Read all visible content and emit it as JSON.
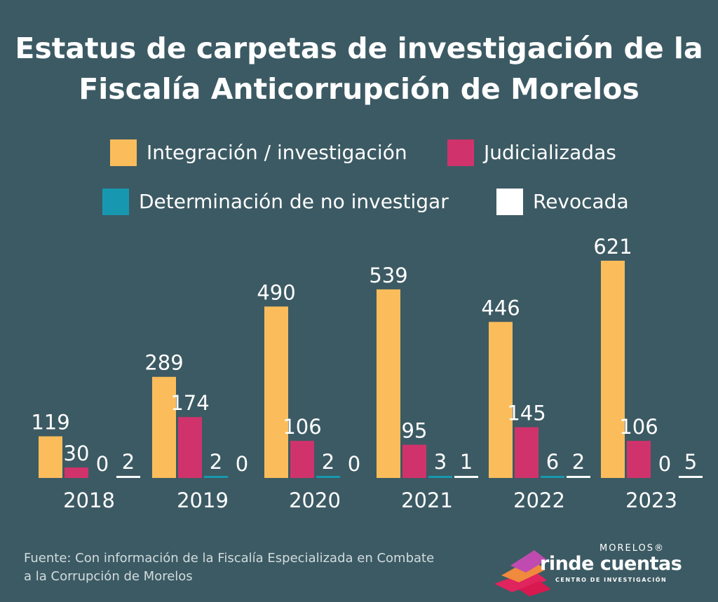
{
  "title": {
    "line1": "Estatus de carpetas de investigación de la",
    "line2": "Fiscalía Anticorrupción de Morelos"
  },
  "legend": [
    {
      "label": "Integración / investigación",
      "color": "#fbbd5b"
    },
    {
      "label": "Judicializadas",
      "color": "#d0336c"
    },
    {
      "label": "Determinación de no investigar",
      "color": "#1798b0"
    },
    {
      "label": "Revocada",
      "color": "#ffffff"
    }
  ],
  "chart_data": {
    "type": "bar",
    "title": "Estatus de carpetas de investigación de la Fiscalía Anticorrupción de Morelos",
    "categories": [
      "2018",
      "2019",
      "2020",
      "2021",
      "2022",
      "2023"
    ],
    "series": [
      {
        "name": "Integración / investigación",
        "color": "#fbbd5b",
        "values": [
          119,
          289,
          490,
          539,
          446,
          621
        ]
      },
      {
        "name": "Judicializadas",
        "color": "#d0336c",
        "values": [
          30,
          174,
          106,
          95,
          145,
          106
        ]
      },
      {
        "name": "Determinación de no investigar",
        "color": "#1798b0",
        "values": [
          0,
          2,
          2,
          3,
          6,
          0
        ]
      },
      {
        "name": "Revocada",
        "color": "#ffffff",
        "values": [
          2,
          0,
          0,
          1,
          2,
          5
        ]
      }
    ],
    "ylim": [
      0,
      621
    ],
    "data_labels": true,
    "grid": false,
    "legend_position": "top"
  },
  "source": {
    "line1": "Fuente: Con información de la Fiscalía Especializada en Combate",
    "line2": "a la Corrupción de Morelos"
  },
  "logo": {
    "top_text": "MORELOS®",
    "main_text": "rinde cuentas",
    "sub_text": "CENTRO DE INVESTIGACIÓN"
  }
}
